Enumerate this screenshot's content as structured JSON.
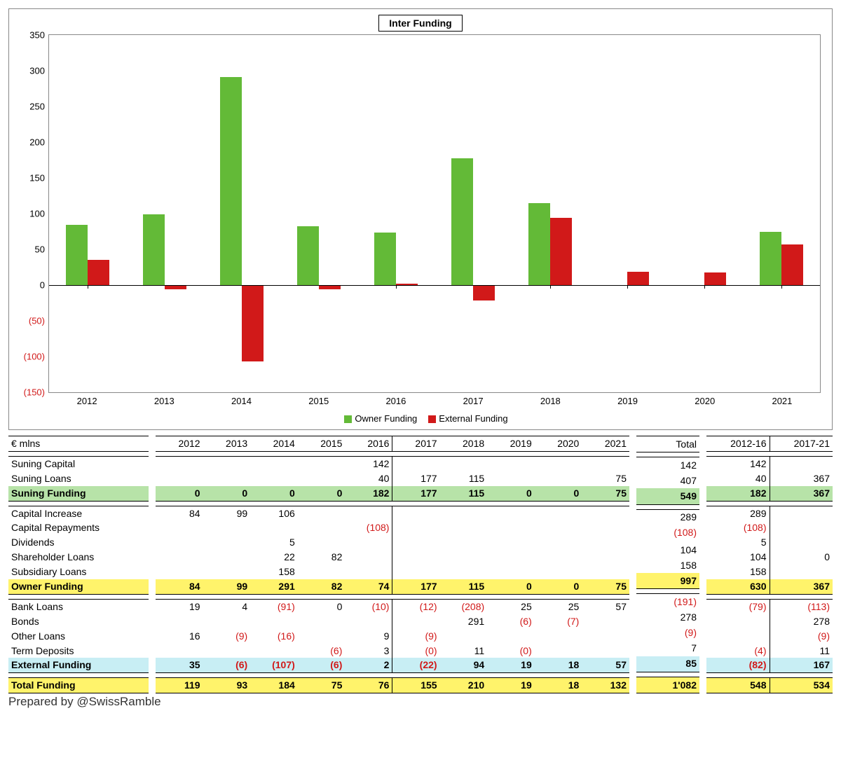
{
  "chart": {
    "title": "Inter Funding",
    "type": "bar",
    "years": [
      "2012",
      "2013",
      "2014",
      "2015",
      "2016",
      "2017",
      "2018",
      "2019",
      "2020",
      "2021"
    ],
    "series": [
      {
        "name": "Owner Funding",
        "color": "#63ba37",
        "values": [
          84,
          99,
          291,
          82,
          74,
          177,
          115,
          0,
          0,
          75
        ]
      },
      {
        "name": "External Funding",
        "color": "#d11919",
        "values": [
          35,
          -6,
          -107,
          -6,
          2,
          -22,
          94,
          19,
          18,
          57
        ]
      }
    ],
    "ylim": [
      -150,
      350
    ],
    "ytick_step": 50,
    "bg": "#ffffff",
    "font": "Verdana"
  },
  "table": {
    "unit": "€ mlns",
    "years": [
      "2012",
      "2013",
      "2014",
      "2015",
      "2016",
      "2017",
      "2018",
      "2019",
      "2020",
      "2021"
    ],
    "extra_cols": [
      "Total",
      "2012-16",
      "2017-21"
    ],
    "rows": [
      {
        "label": "Suning Capital",
        "y": [
          "",
          "",
          "",
          "",
          "142",
          "",
          "",
          "",
          "",
          ""
        ],
        "t": "142",
        "p": [
          "142",
          ""
        ]
      },
      {
        "label": "Suning Loans",
        "y": [
          "",
          "",
          "",
          "",
          "40",
          "177",
          "115",
          "",
          "",
          "75"
        ],
        "t": "407",
        "p": [
          "40",
          "367"
        ]
      },
      {
        "label": "Suning Funding",
        "hl": "green",
        "y": [
          "0",
          "0",
          "0",
          "0",
          "182",
          "177",
          "115",
          "0",
          "0",
          "75"
        ],
        "t": "549",
        "p": [
          "182",
          "367"
        ]
      },
      {
        "label": "Capital Increase",
        "y": [
          "84",
          "99",
          "106",
          "",
          "",
          "",
          "",
          "",
          "",
          ""
        ],
        "t": "289",
        "p": [
          "289",
          ""
        ]
      },
      {
        "label": "Capital Repayments",
        "y": [
          "",
          "",
          "",
          "",
          "(108)",
          "",
          "",
          "",
          "",
          ""
        ],
        "t": "(108)",
        "p": [
          "(108)",
          ""
        ]
      },
      {
        "label": "Dividends",
        "y": [
          "",
          "",
          "5",
          "",
          "",
          "",
          "",
          "",
          "",
          ""
        ],
        "t": "",
        "p": [
          "5",
          ""
        ]
      },
      {
        "label": "Shareholder Loans",
        "y": [
          "",
          "",
          "22",
          "82",
          "",
          "",
          "",
          "",
          "",
          ""
        ],
        "t": "104",
        "p": [
          "104",
          "0"
        ]
      },
      {
        "label": "Subsidiary Loans",
        "y": [
          "",
          "",
          "158",
          "",
          "",
          "",
          "",
          "",
          "",
          ""
        ],
        "t": "158",
        "p": [
          "158",
          ""
        ]
      },
      {
        "label": "Owner Funding",
        "hl": "yellow",
        "y": [
          "84",
          "99",
          "291",
          "82",
          "74",
          "177",
          "115",
          "0",
          "0",
          "75"
        ],
        "t": "997",
        "p": [
          "630",
          "367"
        ]
      },
      {
        "label": "Bank Loans",
        "y": [
          "19",
          "4",
          "(91)",
          "0",
          "(10)",
          "(12)",
          "(208)",
          "25",
          "25",
          "57"
        ],
        "t": "(191)",
        "p": [
          "(79)",
          "(113)"
        ]
      },
      {
        "label": "Bonds",
        "y": [
          "",
          "",
          "",
          "",
          "",
          "",
          "291",
          "(6)",
          "(7)",
          ""
        ],
        "t": "278",
        "p": [
          "",
          "278"
        ]
      },
      {
        "label": "Other Loans",
        "y": [
          "16",
          "(9)",
          "(16)",
          "",
          "9",
          "(9)",
          "",
          "",
          "",
          ""
        ],
        "t": "(9)",
        "p": [
          "",
          "(9)"
        ]
      },
      {
        "label": "Term Deposits",
        "y": [
          "",
          "",
          "",
          "(6)",
          "3",
          "(0)",
          "11",
          "(0)",
          "",
          ""
        ],
        "t": "7",
        "p": [
          "(4)",
          "11"
        ]
      },
      {
        "label": "External Funding",
        "hl": "cyan",
        "y": [
          "35",
          "(6)",
          "(107)",
          "(6)",
          "2",
          "(22)",
          "94",
          "19",
          "18",
          "57"
        ],
        "t": "85",
        "p": [
          "(82)",
          "167"
        ]
      },
      {
        "label": "Total Funding",
        "hl": "yellow",
        "y": [
          "119",
          "93",
          "184",
          "75",
          "76",
          "155",
          "210",
          "19",
          "18",
          "132"
        ],
        "t": "1'082",
        "p": [
          "548",
          "534"
        ]
      }
    ],
    "section_breaks_after": [
      2,
      8,
      13
    ],
    "hl_colors": {
      "green": "#b7e3a8",
      "yellow": "#fff36b",
      "cyan": "#c8eef4"
    },
    "neg_color": "#d11919"
  },
  "footer": "Prepared by @SwissRamble"
}
